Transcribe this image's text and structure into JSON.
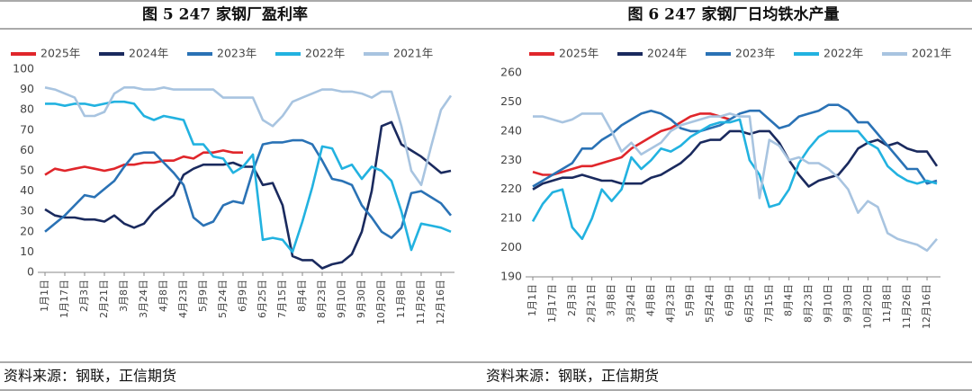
{
  "chart_data": [
    {
      "type": "line",
      "title": "图 5 247 家钢厂盈利率",
      "source": "资料来源：钢联，正信期货",
      "categories": [
        "1月1日",
        null,
        "1月17日",
        null,
        "2月3日",
        null,
        "2月21日",
        null,
        "3月8日",
        null,
        "3月24日",
        null,
        "4月8日",
        null,
        "4月23日",
        null,
        "5月9日",
        null,
        "5月24日",
        null,
        "6月9日",
        null,
        "6月25日",
        null,
        "7月15日",
        null,
        "8月4日",
        null,
        "8月23日",
        null,
        "9月10日",
        null,
        "9月30日",
        null,
        "10月20日",
        null,
        "11月8日",
        null,
        "11月26日",
        null,
        "12月16日",
        null
      ],
      "ylim": [
        0,
        100
      ],
      "yticks": [
        0,
        10,
        20,
        30,
        40,
        50,
        60,
        70,
        80,
        90,
        100
      ],
      "series": [
        {
          "name": "2025年",
          "color": "#e0262b",
          "values": [
            48,
            51,
            50,
            51,
            52,
            51,
            50,
            51,
            53,
            53,
            54,
            54,
            55,
            55,
            57,
            56,
            59,
            59,
            60,
            59,
            59,
            null,
            null,
            null,
            null,
            null,
            null,
            null,
            null,
            null,
            null,
            null,
            null,
            null,
            null,
            null,
            null,
            null,
            null,
            null,
            null,
            null
          ]
        },
        {
          "name": "2024年",
          "color": "#1a2a5e",
          "values": [
            31,
            28,
            27,
            27,
            26,
            26,
            25,
            28,
            24,
            22,
            24,
            30,
            34,
            38,
            48,
            51,
            53,
            53,
            53,
            54,
            52,
            52,
            43,
            44,
            33,
            8,
            6,
            6,
            2,
            4,
            5,
            9,
            20,
            40,
            72,
            74,
            63,
            60,
            57,
            53,
            49,
            50
          ]
        },
        {
          "name": "2023年",
          "color": "#2a72b5",
          "values": [
            20,
            24,
            28,
            33,
            38,
            37,
            41,
            45,
            52,
            58,
            59,
            59,
            54,
            49,
            43,
            27,
            23,
            25,
            33,
            35,
            34,
            50,
            63,
            64,
            64,
            65,
            65,
            63,
            55,
            46,
            45,
            43,
            33,
            27,
            20,
            17,
            22,
            39,
            40,
            37,
            34,
            28
          ]
        },
        {
          "name": "2022年",
          "color": "#22b2e0",
          "values": [
            83,
            83,
            82,
            83,
            83,
            82,
            83,
            84,
            84,
            83,
            77,
            75,
            77,
            76,
            75,
            63,
            63,
            57,
            56,
            49,
            52,
            58,
            16,
            17,
            16,
            10,
            25,
            42,
            62,
            61,
            51,
            53,
            46,
            52,
            50,
            45,
            30,
            11,
            24,
            23,
            22,
            20
          ]
        },
        {
          "name": "2021年",
          "color": "#a8c4e0",
          "values": [
            91,
            90,
            88,
            86,
            77,
            77,
            79,
            88,
            91,
            91,
            90,
            90,
            91,
            90,
            90,
            90,
            90,
            90,
            86,
            86,
            86,
            86,
            75,
            72,
            77,
            84,
            86,
            88,
            90,
            90,
            89,
            89,
            88,
            86,
            89,
            89,
            72,
            50,
            43,
            62,
            80,
            87
          ]
        }
      ]
    },
    {
      "type": "line",
      "title": "图 6  247 家钢厂日均铁水产量",
      "source": "资料来源：钢联，正信期货",
      "categories": [
        "1月1日",
        null,
        "1月17日",
        null,
        "2月3日",
        null,
        "2月21日",
        null,
        "3月8日",
        null,
        "3月24日",
        null,
        "4月8日",
        null,
        "4月23日",
        null,
        "5月9日",
        null,
        "5月24日",
        null,
        "6月9日",
        null,
        "6月25日",
        null,
        "7月15日",
        null,
        "8月4日",
        null,
        "8月23日",
        null,
        "9月10日",
        null,
        "9月30日",
        null,
        "10月20日",
        null,
        "11月8日",
        null,
        "11月26日",
        null,
        "12月16日",
        null
      ],
      "ylim": [
        190,
        260
      ],
      "yticks": [
        190,
        200,
        210,
        220,
        230,
        240,
        250,
        260
      ],
      "series": [
        {
          "name": "2025年",
          "color": "#e0262b",
          "values": [
            226,
            225,
            225,
            226,
            227,
            228,
            228,
            229,
            230,
            231,
            234,
            236,
            238,
            240,
            241,
            243,
            245,
            246,
            246,
            245,
            244,
            null,
            null,
            null,
            null,
            null,
            null,
            null,
            null,
            null,
            null,
            null,
            null,
            null,
            null,
            null,
            null,
            null,
            null,
            null,
            null,
            null
          ]
        },
        {
          "name": "2024年",
          "color": "#1a2a5e",
          "values": [
            220,
            222,
            223,
            224,
            224,
            225,
            224,
            223,
            223,
            222,
            222,
            222,
            224,
            225,
            227,
            229,
            232,
            236,
            237,
            237,
            240,
            240,
            239,
            240,
            240,
            236,
            230,
            225,
            221,
            223,
            224,
            225,
            229,
            234,
            236,
            237,
            235,
            236,
            234,
            233,
            233,
            228
          ]
        },
        {
          "name": "2023年",
          "color": "#2a72b5",
          "values": [
            221,
            223,
            225,
            227,
            229,
            234,
            234,
            237,
            239,
            242,
            244,
            246,
            247,
            246,
            244,
            241,
            240,
            240,
            241,
            242,
            244,
            246,
            247,
            247,
            244,
            241,
            242,
            245,
            246,
            247,
            249,
            249,
            247,
            243,
            243,
            239,
            235,
            231,
            227,
            227,
            222,
            223
          ]
        },
        {
          "name": "2022年",
          "color": "#22b2e0",
          "values": [
            209,
            215,
            219,
            220,
            207,
            203,
            210,
            220,
            216,
            220,
            231,
            227,
            230,
            234,
            233,
            235,
            238,
            240,
            242,
            243,
            243,
            244,
            230,
            225,
            214,
            215,
            220,
            229,
            234,
            238,
            240,
            240,
            240,
            240,
            236,
            234,
            228,
            225,
            223,
            222,
            223,
            222
          ]
        },
        {
          "name": "2021年",
          "color": "#a8c4e0",
          "values": [
            245,
            245,
            244,
            243,
            244,
            246,
            246,
            246,
            240,
            233,
            236,
            232,
            234,
            236,
            240,
            242,
            243,
            244,
            245,
            245,
            246,
            245,
            245,
            217,
            237,
            235,
            230,
            231,
            229,
            229,
            227,
            224,
            220,
            212,
            216,
            214,
            205,
            203,
            202,
            201,
            199,
            203
          ]
        }
      ]
    }
  ]
}
